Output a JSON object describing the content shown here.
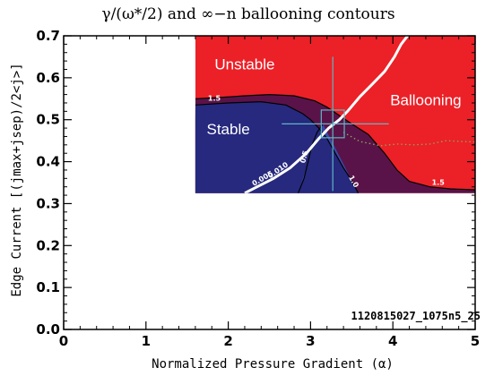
{
  "chart_data": {
    "type": "contour",
    "title": "γ/(ω*/2) and ∞−n ballooning contours",
    "xlabel": "Normalized Pressure Gradient (α)",
    "ylabel": "Edge Current [(jmax+jsep)/2<j>]",
    "xlim": [
      0,
      5
    ],
    "ylim": [
      0,
      0.7
    ],
    "x_ticks": [
      0,
      1,
      2,
      3,
      4,
      5
    ],
    "y_ticks": [
      0.0,
      0.1,
      0.2,
      0.3,
      0.4,
      0.5,
      0.6,
      0.7
    ],
    "x_tick_labels": [
      "0",
      "1",
      "2",
      "3",
      "4",
      "5"
    ],
    "y_tick_labels": [
      "0.0",
      "0.1",
      "0.2",
      "0.3",
      "0.4",
      "0.5",
      "0.6",
      "0.7"
    ],
    "grid": false,
    "computed_domain": {
      "x": [
        1.6,
        5.0
      ],
      "y": [
        0.325,
        0.7
      ]
    },
    "region_labels": [
      {
        "text": "Unstable",
        "x": 2.2,
        "y": 0.62
      },
      {
        "text": "Ballooning",
        "x": 4.4,
        "y": 0.535
      },
      {
        "text": "Stable",
        "x": 2.0,
        "y": 0.465
      }
    ],
    "contours": [
      {
        "level_label": "1.5",
        "color": "#000000",
        "points": [
          [
            1.6,
            0.55
          ],
          [
            1.9,
            0.553
          ],
          [
            2.2,
            0.557
          ],
          [
            2.5,
            0.56
          ],
          [
            2.8,
            0.557
          ],
          [
            3.05,
            0.545
          ],
          [
            3.2,
            0.53
          ],
          [
            3.35,
            0.51
          ],
          [
            3.5,
            0.49
          ],
          [
            3.7,
            0.465
          ],
          [
            3.9,
            0.42
          ],
          [
            4.05,
            0.38
          ],
          [
            4.2,
            0.353
          ],
          [
            4.45,
            0.34
          ],
          [
            4.7,
            0.335
          ],
          [
            5.0,
            0.333
          ]
        ]
      },
      {
        "level_label": "1.0",
        "color": "#000000",
        "points": [
          [
            1.6,
            0.535
          ],
          [
            2.0,
            0.54
          ],
          [
            2.4,
            0.543
          ],
          [
            2.7,
            0.535
          ],
          [
            2.9,
            0.515
          ],
          [
            3.0,
            0.5
          ],
          [
            3.1,
            0.48
          ],
          [
            3.2,
            0.455
          ],
          [
            3.3,
            0.42
          ],
          [
            3.4,
            0.385
          ],
          [
            3.5,
            0.355
          ],
          [
            3.58,
            0.325
          ]
        ]
      },
      {
        "level_label": "0.5",
        "color": "#000000",
        "points": [
          [
            2.85,
            0.325
          ],
          [
            2.92,
            0.36
          ],
          [
            2.97,
            0.4
          ],
          [
            3.02,
            0.44
          ],
          [
            3.08,
            0.47
          ],
          [
            3.15,
            0.49
          ]
        ]
      }
    ],
    "marginal_stability_curve": {
      "color": "#ffffff",
      "labels": [
        "0.005",
        "0.010"
      ],
      "points": [
        [
          2.2,
          0.325
        ],
        [
          2.35,
          0.34
        ],
        [
          2.55,
          0.36
        ],
        [
          2.75,
          0.385
        ],
        [
          2.95,
          0.42
        ],
        [
          3.1,
          0.455
        ],
        [
          3.22,
          0.48
        ],
        [
          3.35,
          0.5
        ],
        [
          3.45,
          0.52
        ],
        [
          3.6,
          0.555
        ],
        [
          3.75,
          0.585
        ],
        [
          3.9,
          0.615
        ],
        [
          4.02,
          0.65
        ],
        [
          4.1,
          0.68
        ],
        [
          4.18,
          0.7
        ]
      ]
    },
    "ballooning_boundary_dotted": {
      "color": "#8aa860",
      "points": [
        [
          3.4,
          0.47
        ],
        [
          3.6,
          0.448
        ],
        [
          3.85,
          0.438
        ],
        [
          4.05,
          0.442
        ],
        [
          4.25,
          0.44
        ],
        [
          4.45,
          0.442
        ],
        [
          4.65,
          0.45
        ],
        [
          4.85,
          0.448
        ],
        [
          5.0,
          0.447
        ]
      ]
    },
    "operating_point": {
      "x": 3.27,
      "y": 0.49,
      "x_err": [
        2.65,
        3.95
      ],
      "y_err": [
        0.33,
        0.65
      ],
      "box_dx": 0.14,
      "box_dy": 0.033
    },
    "annotation": "1120815027_1075n5_25",
    "colors": {
      "unstable": "#ec2027",
      "stable": "#26297e",
      "marginal": "#5a1348",
      "inner_stable": "#3a49a8",
      "crosshair": "#5fb6c6"
    }
  }
}
